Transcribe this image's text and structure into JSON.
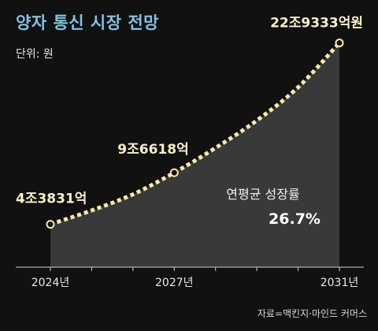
{
  "title": "양자 통신 시장 전망",
  "unit_label": "단위: 원",
  "source": "자료=맥킨지·마인드 커머스",
  "annotation": {
    "label": "연평균 성장률",
    "value": "26.7%"
  },
  "colors": {
    "background": "#111111",
    "title": "#7fc3e4",
    "area_fill": "#3a3939",
    "curve": "#f6eaa8",
    "point_fill": "#111111",
    "point_stroke": "#f6eaa8",
    "data_label": "#fbeec8"
  },
  "chart_data": {
    "type": "area",
    "title": "양자 통신 시장 전망",
    "xlabel": "",
    "ylabel": "",
    "x": [
      2024,
      2025,
      2026,
      2027,
      2028,
      2029,
      2030,
      2031
    ],
    "values_trillion_won": [
      4.3831,
      5.8,
      7.45,
      9.6618,
      12.2,
      15.0,
      18.4,
      22.9333
    ],
    "labeled_points": [
      {
        "x": 2024,
        "value": 4.3831,
        "label": "4조3831억"
      },
      {
        "x": 2027,
        "value": 9.6618,
        "label": "9조6618억"
      },
      {
        "x": 2031,
        "value": 22.9333,
        "label": "22조9333억원"
      }
    ],
    "x_tick_labels": [
      {
        "x": 2024,
        "label": "2024년"
      },
      {
        "x": 2027,
        "label": "2027년"
      },
      {
        "x": 2031,
        "label": "2031년"
      }
    ],
    "xlim": [
      2024,
      2031
    ],
    "ylim": [
      0,
      24.5
    ],
    "line_style": "dotted",
    "grid": false,
    "legend": "none"
  }
}
